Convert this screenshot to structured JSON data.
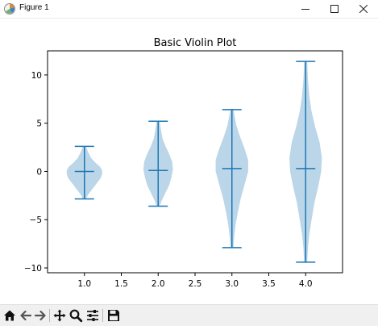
{
  "window": {
    "title": "Figure 1",
    "app_icon": "matplotlib-figure-icon",
    "controls": [
      "minimize-icon",
      "maximize-icon",
      "close-icon"
    ]
  },
  "toolbar": {
    "tools": [
      "home-icon",
      "back-arrow-icon",
      "forward-arrow-icon",
      "pan-move-icon",
      "zoom-magnifier-icon",
      "configure-subplots-icon",
      "save-disk-icon"
    ]
  },
  "chart_data": {
    "type": "violin",
    "title": "Basic Violin Plot",
    "xlabel": "",
    "ylabel": "",
    "xlim": [
      0.5,
      4.5
    ],
    "ylim": [
      -10.5,
      12.5
    ],
    "x_ticks": [
      1.0,
      1.5,
      2.0,
      2.5,
      3.0,
      3.5,
      4.0
    ],
    "x_tick_labels": [
      "1.0",
      "1.5",
      "2.0",
      "2.5",
      "3.0",
      "3.5",
      "4.0"
    ],
    "y_ticks": [
      -10,
      -5,
      0,
      5,
      10
    ],
    "y_tick_labels": [
      "−10",
      "−5",
      "0",
      "5",
      "10"
    ],
    "grid": false,
    "colors": {
      "body": "#bad6e8",
      "lines": "#1f77b4",
      "axes": "#000000"
    },
    "violins": [
      {
        "position": 1.0,
        "min": -2.85,
        "max": 2.6,
        "median": 0.0,
        "profile": [
          [
            -2.85,
            0.02
          ],
          [
            -2.4,
            0.05
          ],
          [
            -1.8,
            0.11
          ],
          [
            -1.2,
            0.17
          ],
          [
            -0.7,
            0.22
          ],
          [
            -0.3,
            0.24
          ],
          [
            0.1,
            0.24
          ],
          [
            0.5,
            0.21
          ],
          [
            0.9,
            0.15
          ],
          [
            1.4,
            0.09
          ],
          [
            2.0,
            0.05
          ],
          [
            2.6,
            0.02
          ]
        ]
      },
      {
        "position": 2.0,
        "min": -3.6,
        "max": 5.2,
        "median": 0.1,
        "profile": [
          [
            -3.6,
            0.02
          ],
          [
            -3.0,
            0.05
          ],
          [
            -2.2,
            0.1
          ],
          [
            -1.4,
            0.15
          ],
          [
            -0.6,
            0.18
          ],
          [
            0.2,
            0.2
          ],
          [
            1.0,
            0.19
          ],
          [
            1.8,
            0.15
          ],
          [
            2.6,
            0.1
          ],
          [
            3.4,
            0.06
          ],
          [
            4.2,
            0.04
          ],
          [
            5.2,
            0.02
          ]
        ]
      },
      {
        "position": 3.0,
        "min": -7.9,
        "max": 6.4,
        "median": 0.3,
        "profile": [
          [
            -7.9,
            0.02
          ],
          [
            -6.8,
            0.03
          ],
          [
            -5.5,
            0.05
          ],
          [
            -4.2,
            0.08
          ],
          [
            -2.8,
            0.12
          ],
          [
            -1.4,
            0.17
          ],
          [
            0.0,
            0.22
          ],
          [
            1.2,
            0.22
          ],
          [
            2.4,
            0.17
          ],
          [
            3.6,
            0.11
          ],
          [
            4.8,
            0.06
          ],
          [
            6.4,
            0.02
          ]
        ]
      },
      {
        "position": 4.0,
        "min": -9.4,
        "max": 11.4,
        "median": 0.3,
        "profile": [
          [
            -9.4,
            0.02
          ],
          [
            -8.0,
            0.03
          ],
          [
            -6.5,
            0.05
          ],
          [
            -5.0,
            0.08
          ],
          [
            -3.2,
            0.12
          ],
          [
            -1.6,
            0.17
          ],
          [
            0.0,
            0.21
          ],
          [
            1.4,
            0.22
          ],
          [
            3.0,
            0.19
          ],
          [
            4.6,
            0.13
          ],
          [
            6.2,
            0.08
          ],
          [
            7.8,
            0.05
          ],
          [
            9.6,
            0.03
          ],
          [
            11.4,
            0.02
          ]
        ]
      }
    ]
  }
}
